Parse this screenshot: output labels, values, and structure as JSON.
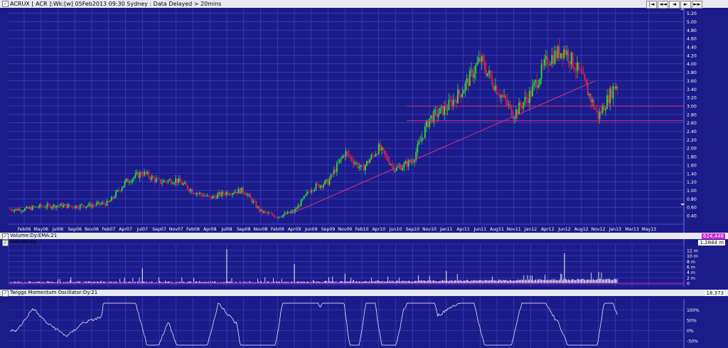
{
  "header": {
    "title": "ACRUX [ ACR ]:Wk:[w]  05Feb2013 09:30 Sydney : Data Delayed > 20mins",
    "nav_buttons": [
      "|◄",
      "◄◄",
      "◄",
      "►",
      "►►"
    ]
  },
  "panels": {
    "volume_label_1": "Volume:Dy:EMA:21",
    "volume_label_2": "Volume:Dy",
    "volume_readout_1": "624,448",
    "volume_readout_2": "1.2844 m",
    "twiggs_label": "Twiggs Momentum Oscillator:Dy:21",
    "twiggs_readout": "18.373"
  },
  "colors": {
    "background": "#1b1b8a",
    "grid": "#4a4ad0",
    "up_candle": "#32e032",
    "down_candle": "#e8224a",
    "trendline": "#e0307a",
    "volume": "#ffffff",
    "oscillator": "#ffffff"
  },
  "chart_data": [
    {
      "type": "candlestick",
      "title": "ACRUX [ ACR ]:Wk:[w]",
      "x_tick_labels": [
        "Feb06",
        "May06",
        "Jul06",
        "Sep06",
        "Nov06",
        "Feb07",
        "Apr07",
        "Jul07",
        "Sep07",
        "Nov07",
        "Feb08",
        "Apr08",
        "Jul08",
        "Sep08",
        "Nov08",
        "Feb09",
        "Apr09",
        "Jun09",
        "Sep09",
        "Nov09",
        "Feb10",
        "Apr10",
        "Jun10",
        "Sep10",
        "Nov10",
        "Jan11",
        "Apr11",
        "Jun11",
        "Aug11",
        "Nov11",
        "Jan12",
        "Apr12",
        "Jun12",
        "Aug12",
        "Nov12",
        "Jan13",
        "Mar13",
        "May13"
      ],
      "y_tick_labels": [
        "0.40",
        "0.60",
        "0.80",
        "1.00",
        "1.20",
        "1.40",
        "1.60",
        "1.80",
        "2.00",
        "2.20",
        "2.40",
        "2.60",
        "2.80",
        "3.00",
        "3.20",
        "3.40",
        "3.60",
        "3.80",
        "4.00",
        "4.20",
        "4.40",
        "4.60",
        "4.80",
        "5.00",
        "5.20"
      ],
      "ylim": [
        0.25,
        5.3
      ],
      "grid": true,
      "price_path": [
        [
          "Feb06",
          0.55
        ],
        [
          "May06",
          0.62
        ],
        [
          "Jul06",
          0.64
        ],
        [
          "Sep06",
          0.62
        ],
        [
          "Nov06",
          0.65
        ],
        [
          "Feb07",
          0.7
        ],
        [
          "Apr07",
          1.2
        ],
        [
          "Jul07",
          1.42
        ],
        [
          "Sep07",
          1.2
        ],
        [
          "Nov07",
          1.25
        ],
        [
          "Feb08",
          0.98
        ],
        [
          "Apr08",
          0.82
        ],
        [
          "Jul08",
          0.95
        ],
        [
          "Sep08",
          1.0
        ],
        [
          "Nov08",
          0.5
        ],
        [
          "Feb09",
          0.38
        ],
        [
          "Apr09",
          0.5
        ],
        [
          "Jun09",
          1.05
        ],
        [
          "Sep09",
          1.2
        ],
        [
          "Nov09",
          1.9
        ],
        [
          "Feb10",
          1.5
        ],
        [
          "Apr10",
          2.0
        ],
        [
          "Jun10",
          1.5
        ],
        [
          "Sep10",
          1.7
        ],
        [
          "Nov10",
          2.7
        ],
        [
          "Jan11",
          2.95
        ],
        [
          "Apr11",
          3.4
        ],
        [
          "Jun11",
          4.1
        ],
        [
          "Aug11",
          3.4
        ],
        [
          "Nov11",
          2.8
        ],
        [
          "Jan12",
          3.3
        ],
        [
          "Apr12",
          4.1
        ],
        [
          "Jun12",
          4.35
        ],
        [
          "Aug12",
          3.7
        ],
        [
          "Nov12",
          2.75
        ],
        [
          "Jan13",
          3.5
        ]
      ],
      "horizontal_lines": [
        3.0,
        2.65
      ],
      "trendline": [
        [
          "Apr09",
          0.45
        ],
        [
          "Aug12",
          3.6
        ]
      ]
    },
    {
      "type": "bar",
      "title": "Volume:Dy",
      "y_tick_labels": [
        "0",
        "2 m",
        "4 m",
        "6 m",
        "8 m",
        "10 m",
        "12 m"
      ],
      "ylim": [
        0,
        13
      ],
      "spikes": [
        [
          "Jul07",
          5.5
        ],
        [
          "Apr09",
          7
        ],
        [
          "Nov09",
          3.5
        ],
        [
          "Jun12",
          11
        ],
        [
          "Jan11",
          4.5
        ],
        [
          "Jul08",
          12.5
        ]
      ]
    },
    {
      "type": "line",
      "title": "Twiggs Momentum Oscillator:Dy:21",
      "y_tick_labels": [
        "100%",
        "50%",
        "0%",
        "-50%"
      ],
      "ylim": [
        -65,
        135
      ],
      "last_value": 18.373
    }
  ]
}
